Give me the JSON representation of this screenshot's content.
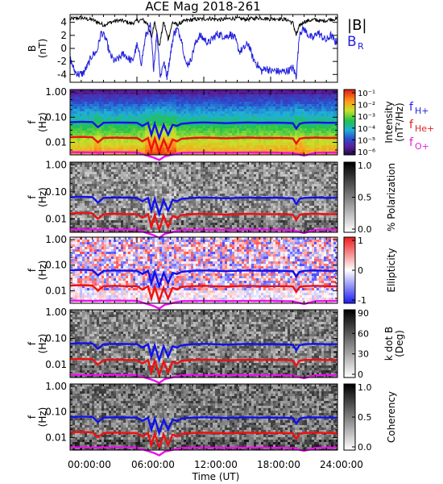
{
  "chart_data": {
    "type": "spectrogram",
    "title": "ACE Mag 2018-261",
    "xlabel": "Time (UT)",
    "x_ticks": [
      "00:00:00",
      "06:00:00",
      "12:00:00",
      "18:00:00",
      "24:00:00"
    ],
    "xlim_hours": [
      0,
      24
    ],
    "panels": [
      {
        "kind": "line",
        "ylabel": "B",
        "yunit": "(nT)",
        "yticks": [
          "4",
          "2",
          "0",
          "-2",
          "-4"
        ],
        "ylim": [
          -5.2,
          5.2
        ],
        "legend": [
          {
            "name": "|B|",
            "color": "#000000"
          },
          {
            "name": "B",
            "sub": "R",
            "color": "#2222dd"
          }
        ],
        "series": [
          {
            "name": "|B|",
            "color": "#000000",
            "x": [
              0,
              0.5,
              1,
              1.5,
              2,
              2.5,
              3,
              3.5,
              4,
              4.5,
              5,
              5.5,
              6,
              6.5,
              7,
              7.3,
              7.6,
              8,
              8.4,
              8.8,
              9.2,
              9.6,
              10,
              10.5,
              11,
              11.5,
              12,
              12.5,
              13,
              13.5,
              14,
              14.5,
              15,
              15.5,
              16,
              16.5,
              17,
              17.5,
              18,
              18.5,
              19,
              19.5,
              20,
              20.3,
              20.6,
              21,
              21.5,
              22,
              22.5,
              23,
              23.5,
              24
            ],
            "y": [
              4.5,
              4.6,
              4.7,
              4.5,
              4.4,
              4.0,
              3.6,
              3.9,
              4.2,
              4.3,
              4.1,
              3.8,
              4.2,
              4.4,
              3.7,
              1.5,
              4.3,
              0.2,
              4.1,
              1.4,
              4.0,
              3.6,
              4.0,
              4.3,
              4.4,
              4.5,
              4.5,
              4.6,
              4.5,
              4.4,
              4.5,
              4.6,
              4.6,
              4.5,
              4.5,
              4.6,
              4.7,
              4.6,
              4.5,
              4.6,
              4.5,
              4.4,
              3.9,
              2.0,
              3.5,
              4.1,
              4.3,
              4.4,
              4.2,
              4.3,
              4.5,
              4.5
            ]
          },
          {
            "name": "BR",
            "color": "#2222dd",
            "x": [
              0,
              0.4,
              0.8,
              1.2,
              1.6,
              2.0,
              2.4,
              2.8,
              3.2,
              3.6,
              4.0,
              4.4,
              4.8,
              5.2,
              5.6,
              6.0,
              6.4,
              6.8,
              7.2,
              7.5,
              7.8,
              8.1,
              8.4,
              8.7,
              9.0,
              9.3,
              9.6,
              10.0,
              10.4,
              10.8,
              11.2,
              11.6,
              12.0,
              12.4,
              12.8,
              13.2,
              13.6,
              14.0,
              14.4,
              14.8,
              15.2,
              15.6,
              16.0,
              16.4,
              16.8,
              17.2,
              17.6,
              18.0,
              18.4,
              18.8,
              19.2,
              19.6,
              20.0,
              20.3,
              20.6,
              21.0,
              21.4,
              21.8,
              22.2,
              22.6,
              23.0,
              23.4,
              23.8,
              24.0
            ],
            "y": [
              -1.5,
              -3.5,
              -4.0,
              -3.8,
              -2.5,
              -1.0,
              -0.5,
              2.5,
              1.5,
              -1.0,
              -2.0,
              -1.5,
              -0.8,
              -1.5,
              -2.0,
              0.5,
              -2.2,
              2.0,
              3.5,
              -3.0,
              2.5,
              -4.5,
              -2.0,
              -4.3,
              -1.0,
              2.2,
              3.0,
              1.5,
              -2.5,
              -2.0,
              0.5,
              2.0,
              1.5,
              0.8,
              1.5,
              2.2,
              2.0,
              1.8,
              2.2,
              1.5,
              -0.5,
              0.0,
              0.8,
              -1.5,
              -2.5,
              -3.5,
              -3.0,
              -3.5,
              -3.4,
              -3.6,
              -3.5,
              -3.4,
              -3.0,
              -4.3,
              2.5,
              3.0,
              2.0,
              1.5,
              2.5,
              1.8,
              1.2,
              2.0,
              1.0,
              1.2
            ]
          }
        ]
      },
      {
        "kind": "spectrogram",
        "ylabel": "f",
        "yunit": "(Hz)",
        "yticks": [
          "1.00",
          "0.10",
          "0.01"
        ],
        "colormap": "rainbow",
        "colorbar_label": "Intensity",
        "colorbar_unit": "(nT²/Hz)",
        "colorbar_ticks": [
          "10⁻¹",
          "10⁻²",
          "10⁻³",
          "10⁻⁴",
          "10⁻⁵",
          "10⁻⁶"
        ],
        "overlay_legend": [
          {
            "label": "f",
            "sub": "H+",
            "color": "#2222dd"
          },
          {
            "label": "f",
            "sub": "He+",
            "color": "#dd2222"
          },
          {
            "label": "f",
            "sub": "O+",
            "color": "#dd22dd"
          }
        ]
      },
      {
        "kind": "spectrogram",
        "ylabel": "f",
        "yunit": "(Hz)",
        "yticks": [
          "1.00",
          "0.10",
          "0.01"
        ],
        "colormap": "gray",
        "colorbar_label": "% Polarization",
        "colorbar_ticks": [
          "1.0",
          "0.5",
          "0.0"
        ]
      },
      {
        "kind": "spectrogram",
        "ylabel": "f",
        "yunit": "(Hz)",
        "yticks": [
          "1.00",
          "0.10",
          "0.01"
        ],
        "colormap": "bwr",
        "colorbar_label": "Ellipticity",
        "colorbar_ticks": [
          "1",
          "0",
          "-1"
        ]
      },
      {
        "kind": "spectrogram",
        "ylabel": "f",
        "yunit": "(Hz)",
        "yticks": [
          "1.00",
          "0.10",
          "0.01"
        ],
        "colormap": "gray",
        "colorbar_label": "k dot B",
        "colorbar_unit": "(Deg)",
        "colorbar_ticks": [
          "90",
          "60",
          "30",
          "0"
        ]
      },
      {
        "kind": "spectrogram",
        "ylabel": "f",
        "yunit": "(Hz)",
        "yticks": [
          "1.00",
          "0.10",
          "0.01"
        ],
        "colormap": "gray",
        "colorbar_label": "Coherency",
        "colorbar_ticks": [
          "1.0",
          "0.5",
          "0.0"
        ]
      }
    ],
    "overlay_lines": [
      {
        "name": "fH+",
        "color": "#1010ee",
        "x": [
          0,
          1,
          2,
          2.5,
          3,
          4,
          5,
          6,
          6.5,
          7,
          7.3,
          7.6,
          8,
          8.4,
          8.8,
          9.2,
          9.6,
          10,
          11,
          12,
          13,
          14,
          15,
          16,
          17,
          18,
          19,
          20,
          20.3,
          20.6,
          21,
          22,
          23,
          24
        ],
        "y": [
          0.063,
          0.066,
          0.064,
          0.04,
          0.06,
          0.062,
          0.061,
          0.06,
          0.045,
          0.06,
          0.02,
          0.055,
          0.015,
          0.05,
          0.02,
          0.05,
          0.045,
          0.055,
          0.06,
          0.062,
          0.06,
          0.058,
          0.06,
          0.062,
          0.06,
          0.061,
          0.06,
          0.058,
          0.035,
          0.055,
          0.06,
          0.062,
          0.06,
          0.06
        ]
      },
      {
        "name": "fHe+",
        "color": "#ee1010",
        "x": [
          0,
          1,
          2,
          2.5,
          3,
          4,
          5,
          6,
          6.5,
          7,
          7.3,
          7.6,
          8,
          8.4,
          8.8,
          9.2,
          9.6,
          10,
          11,
          12,
          13,
          14,
          15,
          16,
          17,
          18,
          19,
          20,
          20.3,
          20.6,
          21,
          22,
          23,
          24
        ],
        "y": [
          0.016,
          0.0165,
          0.016,
          0.01,
          0.015,
          0.0155,
          0.015,
          0.015,
          0.011,
          0.015,
          0.005,
          0.014,
          0.004,
          0.013,
          0.005,
          0.013,
          0.011,
          0.014,
          0.015,
          0.0155,
          0.015,
          0.0145,
          0.015,
          0.0155,
          0.015,
          0.015,
          0.015,
          0.0145,
          0.009,
          0.014,
          0.015,
          0.0155,
          0.015,
          0.015
        ]
      },
      {
        "name": "fO+",
        "color": "#ee10ee",
        "x": [
          0,
          2,
          4,
          6,
          7.5,
          8,
          8.5,
          10,
          12,
          14,
          16,
          18,
          20,
          21,
          22,
          24
        ],
        "y": [
          0.0041,
          0.004,
          0.0041,
          0.004,
          0.0025,
          0.002,
          0.0028,
          0.0039,
          0.004,
          0.0039,
          0.004,
          0.004,
          0.0038,
          0.003,
          0.0039,
          0.004
        ]
      }
    ]
  }
}
